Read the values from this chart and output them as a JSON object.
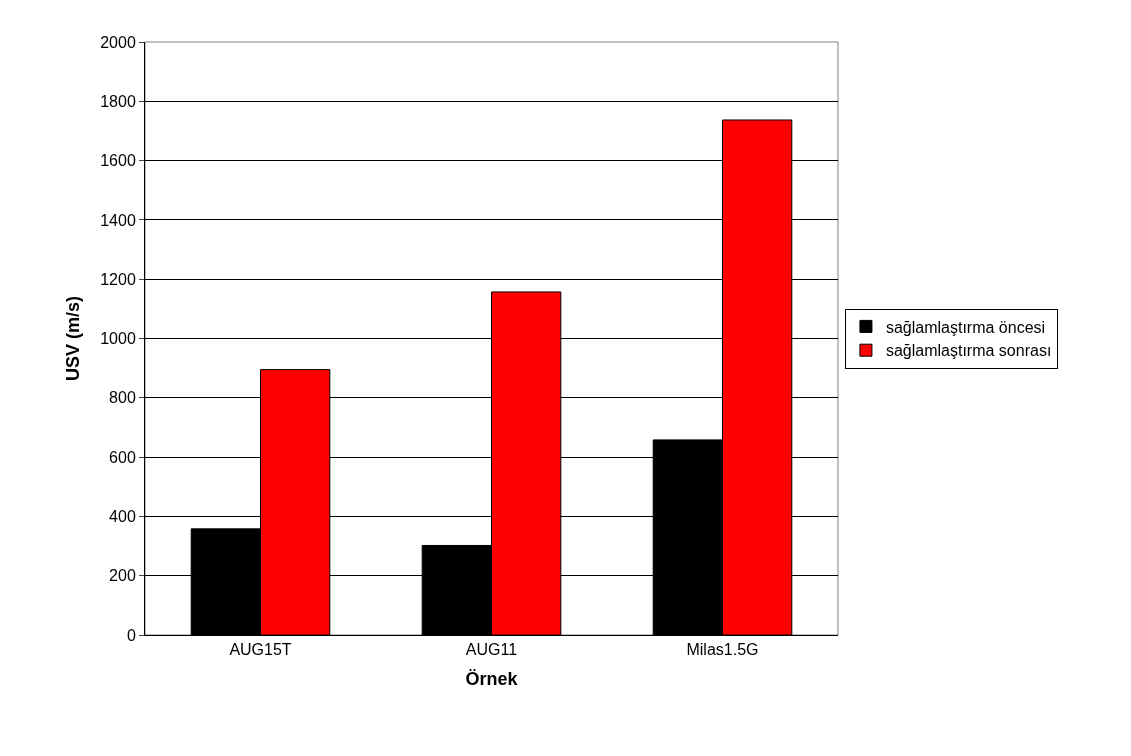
{
  "chart_data": {
    "type": "bar",
    "xlabel": "Örnek",
    "ylabel": "USV (m/s)",
    "categories": [
      "AUG15T",
      "AUG11",
      "Milas1.5G"
    ],
    "series": [
      {
        "name": "sağlamlaştırma öncesi",
        "color": "#000000",
        "values": [
          358,
          302,
          658
        ]
      },
      {
        "name": "sağlamlaştırma sonrası",
        "color": "#ff0000",
        "values": [
          895,
          1157,
          1737
        ]
      }
    ],
    "ylim": [
      0,
      2000
    ],
    "yticks": [
      0,
      200,
      400,
      600,
      800,
      1000,
      1200,
      1400,
      1600,
      1800,
      2000
    ],
    "grid": "y",
    "legend": "right"
  }
}
